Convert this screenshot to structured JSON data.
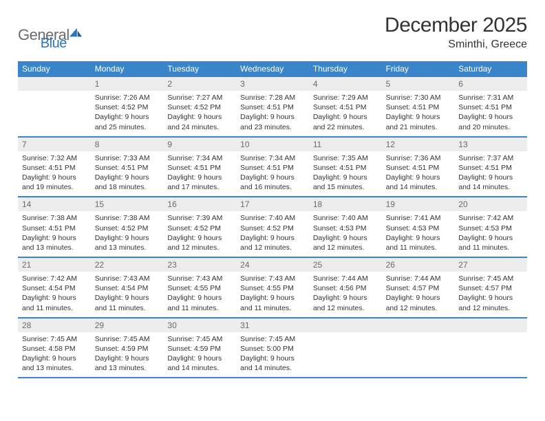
{
  "brand": {
    "word1": "General",
    "word2": "Blue",
    "icon_color": "#2a77bb",
    "text_color_gray": "#6a6a6a"
  },
  "header": {
    "month_title": "December 2025",
    "location": "Sminthi, Greece"
  },
  "colors": {
    "header_bg": "#3a85c9",
    "daynum_bg": "#ececec",
    "border": "#3a85c9",
    "text": "#333333"
  },
  "weekdays": [
    "Sunday",
    "Monday",
    "Tuesday",
    "Wednesday",
    "Thursday",
    "Friday",
    "Saturday"
  ],
  "weeks": [
    [
      {
        "n": "",
        "sr": "",
        "ss": "",
        "dl": ""
      },
      {
        "n": "1",
        "sr": "Sunrise: 7:26 AM",
        "ss": "Sunset: 4:52 PM",
        "dl": "Daylight: 9 hours and 25 minutes."
      },
      {
        "n": "2",
        "sr": "Sunrise: 7:27 AM",
        "ss": "Sunset: 4:52 PM",
        "dl": "Daylight: 9 hours and 24 minutes."
      },
      {
        "n": "3",
        "sr": "Sunrise: 7:28 AM",
        "ss": "Sunset: 4:51 PM",
        "dl": "Daylight: 9 hours and 23 minutes."
      },
      {
        "n": "4",
        "sr": "Sunrise: 7:29 AM",
        "ss": "Sunset: 4:51 PM",
        "dl": "Daylight: 9 hours and 22 minutes."
      },
      {
        "n": "5",
        "sr": "Sunrise: 7:30 AM",
        "ss": "Sunset: 4:51 PM",
        "dl": "Daylight: 9 hours and 21 minutes."
      },
      {
        "n": "6",
        "sr": "Sunrise: 7:31 AM",
        "ss": "Sunset: 4:51 PM",
        "dl": "Daylight: 9 hours and 20 minutes."
      }
    ],
    [
      {
        "n": "7",
        "sr": "Sunrise: 7:32 AM",
        "ss": "Sunset: 4:51 PM",
        "dl": "Daylight: 9 hours and 19 minutes."
      },
      {
        "n": "8",
        "sr": "Sunrise: 7:33 AM",
        "ss": "Sunset: 4:51 PM",
        "dl": "Daylight: 9 hours and 18 minutes."
      },
      {
        "n": "9",
        "sr": "Sunrise: 7:34 AM",
        "ss": "Sunset: 4:51 PM",
        "dl": "Daylight: 9 hours and 17 minutes."
      },
      {
        "n": "10",
        "sr": "Sunrise: 7:34 AM",
        "ss": "Sunset: 4:51 PM",
        "dl": "Daylight: 9 hours and 16 minutes."
      },
      {
        "n": "11",
        "sr": "Sunrise: 7:35 AM",
        "ss": "Sunset: 4:51 PM",
        "dl": "Daylight: 9 hours and 15 minutes."
      },
      {
        "n": "12",
        "sr": "Sunrise: 7:36 AM",
        "ss": "Sunset: 4:51 PM",
        "dl": "Daylight: 9 hours and 14 minutes."
      },
      {
        "n": "13",
        "sr": "Sunrise: 7:37 AM",
        "ss": "Sunset: 4:51 PM",
        "dl": "Daylight: 9 hours and 14 minutes."
      }
    ],
    [
      {
        "n": "14",
        "sr": "Sunrise: 7:38 AM",
        "ss": "Sunset: 4:51 PM",
        "dl": "Daylight: 9 hours and 13 minutes."
      },
      {
        "n": "15",
        "sr": "Sunrise: 7:38 AM",
        "ss": "Sunset: 4:52 PM",
        "dl": "Daylight: 9 hours and 13 minutes."
      },
      {
        "n": "16",
        "sr": "Sunrise: 7:39 AM",
        "ss": "Sunset: 4:52 PM",
        "dl": "Daylight: 9 hours and 12 minutes."
      },
      {
        "n": "17",
        "sr": "Sunrise: 7:40 AM",
        "ss": "Sunset: 4:52 PM",
        "dl": "Daylight: 9 hours and 12 minutes."
      },
      {
        "n": "18",
        "sr": "Sunrise: 7:40 AM",
        "ss": "Sunset: 4:53 PM",
        "dl": "Daylight: 9 hours and 12 minutes."
      },
      {
        "n": "19",
        "sr": "Sunrise: 7:41 AM",
        "ss": "Sunset: 4:53 PM",
        "dl": "Daylight: 9 hours and 11 minutes."
      },
      {
        "n": "20",
        "sr": "Sunrise: 7:42 AM",
        "ss": "Sunset: 4:53 PM",
        "dl": "Daylight: 9 hours and 11 minutes."
      }
    ],
    [
      {
        "n": "21",
        "sr": "Sunrise: 7:42 AM",
        "ss": "Sunset: 4:54 PM",
        "dl": "Daylight: 9 hours and 11 minutes."
      },
      {
        "n": "22",
        "sr": "Sunrise: 7:43 AM",
        "ss": "Sunset: 4:54 PM",
        "dl": "Daylight: 9 hours and 11 minutes."
      },
      {
        "n": "23",
        "sr": "Sunrise: 7:43 AM",
        "ss": "Sunset: 4:55 PM",
        "dl": "Daylight: 9 hours and 11 minutes."
      },
      {
        "n": "24",
        "sr": "Sunrise: 7:43 AM",
        "ss": "Sunset: 4:55 PM",
        "dl": "Daylight: 9 hours and 11 minutes."
      },
      {
        "n": "25",
        "sr": "Sunrise: 7:44 AM",
        "ss": "Sunset: 4:56 PM",
        "dl": "Daylight: 9 hours and 12 minutes."
      },
      {
        "n": "26",
        "sr": "Sunrise: 7:44 AM",
        "ss": "Sunset: 4:57 PM",
        "dl": "Daylight: 9 hours and 12 minutes."
      },
      {
        "n": "27",
        "sr": "Sunrise: 7:45 AM",
        "ss": "Sunset: 4:57 PM",
        "dl": "Daylight: 9 hours and 12 minutes."
      }
    ],
    [
      {
        "n": "28",
        "sr": "Sunrise: 7:45 AM",
        "ss": "Sunset: 4:58 PM",
        "dl": "Daylight: 9 hours and 13 minutes."
      },
      {
        "n": "29",
        "sr": "Sunrise: 7:45 AM",
        "ss": "Sunset: 4:59 PM",
        "dl": "Daylight: 9 hours and 13 minutes."
      },
      {
        "n": "30",
        "sr": "Sunrise: 7:45 AM",
        "ss": "Sunset: 4:59 PM",
        "dl": "Daylight: 9 hours and 14 minutes."
      },
      {
        "n": "31",
        "sr": "Sunrise: 7:45 AM",
        "ss": "Sunset: 5:00 PM",
        "dl": "Daylight: 9 hours and 14 minutes."
      },
      {
        "n": "",
        "sr": "",
        "ss": "",
        "dl": ""
      },
      {
        "n": "",
        "sr": "",
        "ss": "",
        "dl": ""
      },
      {
        "n": "",
        "sr": "",
        "ss": "",
        "dl": ""
      }
    ]
  ]
}
